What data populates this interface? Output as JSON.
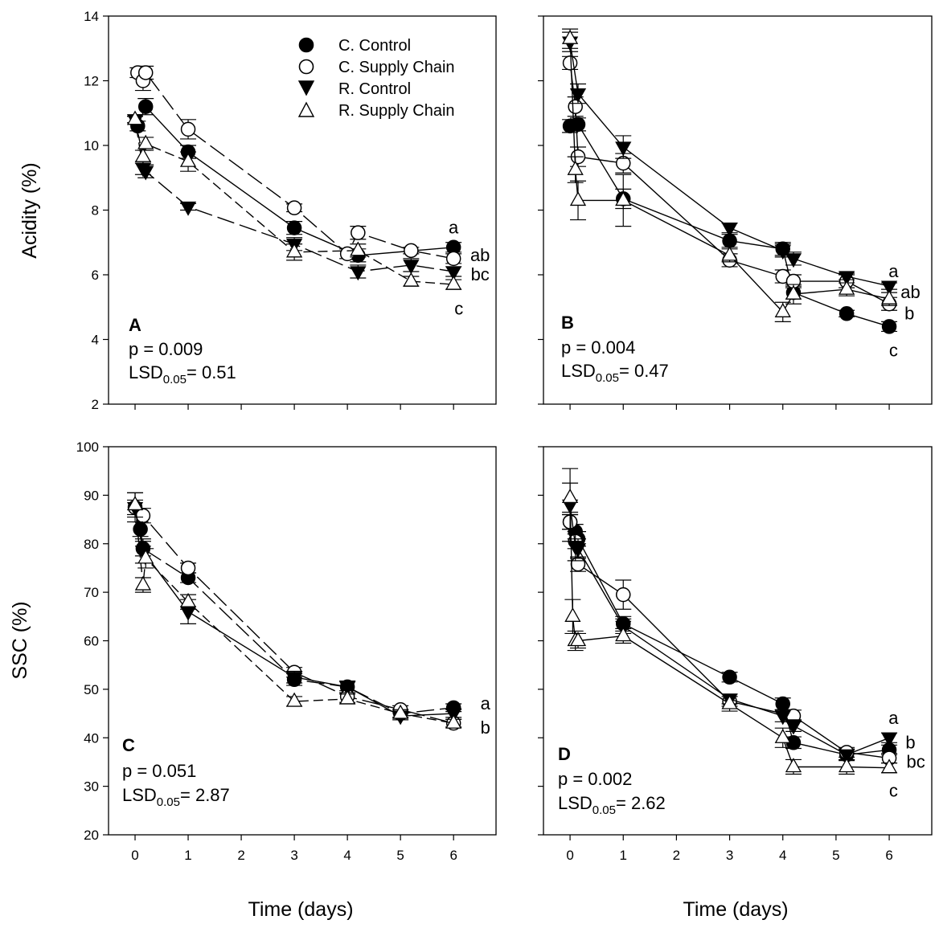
{
  "figure": {
    "x_axis_title": "Time (days)",
    "y_axis_title_top": "Acidity (%)",
    "y_axis_title_bottom": "SSC (%)"
  },
  "legend": [
    {
      "label": "C. Control",
      "marker": "circle-filled"
    },
    {
      "label": "C. Supply Chain",
      "marker": "circle-open"
    },
    {
      "label": "R. Control",
      "marker": "triangle-down-filled"
    },
    {
      "label": "R. Supply Chain",
      "marker": "triangle-up-open"
    }
  ],
  "chart_data": [
    {
      "type": "line",
      "panel": "A",
      "ylabel": "Acidity (%)",
      "xlabel": "",
      "xlim": [
        -0.5,
        6.8
      ],
      "ylim": [
        2,
        14
      ],
      "xticks": [
        0,
        1,
        2,
        3,
        4,
        5,
        6
      ],
      "yticks": [
        2,
        4,
        6,
        8,
        10,
        12,
        14
      ],
      "show_xtick_labels": false,
      "show_ytick_labels": true,
      "stats": {
        "p": "p = 0.009",
        "lsd_value": "= 0.51"
      },
      "series": [
        {
          "name": "C. Control",
          "dash": "solid",
          "x": [
            0.05,
            0.2,
            1,
            3,
            4.2,
            6
          ],
          "y": [
            10.6,
            11.2,
            9.8,
            7.45,
            6.6,
            6.85
          ],
          "err": [
            0.15,
            0.25,
            0.2,
            0.2,
            0.2,
            0.15
          ]
        },
        {
          "name": "C. Supply Chain",
          "dash": "long",
          "x": [
            0.05,
            0.15,
            0.2,
            1,
            3,
            4,
            4.2,
            5.2,
            6
          ],
          "y": [
            12.25,
            12.0,
            12.25,
            10.5,
            8.07,
            6.65,
            7.3,
            6.75,
            6.5
          ],
          "err": [
            0.15,
            0.3,
            0.2,
            0.3,
            0.12,
            0.15,
            0.2,
            0.1,
            0.15
          ]
        },
        {
          "name": "R. Control",
          "dash": "long",
          "x": [
            0,
            0.15,
            0.2,
            1,
            3,
            4.2,
            5.2,
            6
          ],
          "y": [
            10.8,
            9.3,
            9.2,
            8.1,
            6.95,
            6.1,
            6.3,
            6.1
          ],
          "err": [
            0.1,
            0.2,
            0.2,
            0.1,
            0.2,
            0.2,
            0.2,
            0.15
          ]
        },
        {
          "name": "R. Supply Chain",
          "dash": "medium",
          "x": [
            0,
            0.15,
            0.2,
            1,
            3,
            4.2,
            5.2,
            6
          ],
          "y": [
            10.8,
            9.65,
            10.05,
            9.5,
            6.7,
            6.75,
            5.8,
            5.7
          ],
          "err": [
            0.1,
            0.2,
            0.2,
            0.3,
            0.25,
            0.2,
            0.15,
            0.15
          ]
        }
      ],
      "letters": [
        {
          "text": "a",
          "x": 6,
          "y": 7.45
        },
        {
          "text": "ab",
          "x": 6.5,
          "y": 6.6
        },
        {
          "text": "bc",
          "x": 6.5,
          "y": 6.0
        },
        {
          "text": "c",
          "x": 6.1,
          "y": 4.95
        }
      ]
    },
    {
      "type": "line",
      "panel": "B",
      "ylabel": "",
      "xlabel": "",
      "xlim": [
        -0.5,
        6.8
      ],
      "ylim": [
        2,
        14
      ],
      "xticks": [
        0,
        1,
        2,
        3,
        4,
        5,
        6
      ],
      "yticks": [
        2,
        4,
        6,
        8,
        10,
        12,
        14
      ],
      "show_xtick_labels": false,
      "show_ytick_labels": false,
      "stats": {
        "p": "p = 0.004",
        "lsd_value": "= 0.47"
      },
      "series": [
        {
          "name": "C. Control",
          "dash": "solid",
          "x": [
            0,
            0.15,
            1,
            3,
            4,
            4.2,
            5.2,
            6
          ],
          "y": [
            10.6,
            10.65,
            8.35,
            7.05,
            6.8,
            5.45,
            4.8,
            4.4
          ],
          "err": [
            0.2,
            0.2,
            0.3,
            0.2,
            0.2,
            0.2,
            0.1,
            0.15
          ]
        },
        {
          "name": "C. Supply Chain",
          "dash": "solid",
          "x": [
            0,
            0.1,
            0.15,
            1,
            3,
            4,
            4.2,
            5.2,
            6
          ],
          "y": [
            12.55,
            11.2,
            9.65,
            9.45,
            6.45,
            5.95,
            5.8,
            5.8,
            5.1
          ],
          "err": [
            0.2,
            0.3,
            0.3,
            0.3,
            0.2,
            0.2,
            0.2,
            0.2,
            0.2
          ]
        },
        {
          "name": "R. Control",
          "dash": "solid",
          "x": [
            0,
            0.15,
            1,
            3,
            4,
            4.2,
            5.2,
            6
          ],
          "y": [
            13.2,
            11.6,
            9.95,
            7.45,
            6.75,
            6.5,
            5.95,
            5.65
          ],
          "err": [
            0.3,
            0.3,
            0.35,
            0.15,
            0.2,
            0.2,
            0.1,
            0.1
          ]
        },
        {
          "name": "R. Supply Chain",
          "dash": "solid",
          "x": [
            0,
            0.1,
            0.15,
            1,
            3,
            4,
            4.2,
            5.2,
            6
          ],
          "y": [
            13.3,
            9.25,
            8.3,
            8.3,
            6.6,
            4.85,
            5.4,
            5.55,
            5.25
          ],
          "err": [
            0.3,
            0.4,
            0.6,
            0.8,
            0.2,
            0.3,
            0.3,
            0.2,
            0.2
          ]
        }
      ],
      "letters": [
        {
          "text": "a",
          "x": 6.08,
          "y": 6.1
        },
        {
          "text": "ab",
          "x": 6.4,
          "y": 5.45
        },
        {
          "text": "b",
          "x": 6.38,
          "y": 4.8
        },
        {
          "text": "c",
          "x": 6.08,
          "y": 3.65
        }
      ]
    },
    {
      "type": "line",
      "panel": "C",
      "ylabel": "SSC (%)",
      "xlabel": "Time (days)",
      "xlim": [
        -0.5,
        6.8
      ],
      "ylim": [
        20,
        100
      ],
      "xticks": [
        0,
        1,
        2,
        3,
        4,
        5,
        6
      ],
      "yticks": [
        20,
        30,
        40,
        50,
        60,
        70,
        80,
        90,
        100
      ],
      "show_xtick_labels": true,
      "show_ytick_labels": true,
      "stats": {
        "p": "p = 0.051",
        "lsd_value": "= 2.87"
      },
      "series": [
        {
          "name": "C. Control",
          "dash": "long",
          "x": [
            0.1,
            0.15,
            1,
            3,
            4,
            5,
            6
          ],
          "y": [
            83.0,
            79.0,
            73.0,
            52.0,
            50.5,
            45.0,
            46.2
          ],
          "err": [
            1.5,
            1.5,
            1.0,
            1.2,
            1.2,
            0.8,
            0.8
          ]
        },
        {
          "name": "C. Supply Chain",
          "dash": "long",
          "x": [
            0,
            0.15,
            1,
            3,
            4,
            5,
            6
          ],
          "y": [
            87.5,
            85.8,
            75.0,
            53.5,
            48.5,
            45.8,
            43.0
          ],
          "err": [
            1.5,
            1.5,
            1.0,
            1.0,
            1.2,
            0.8,
            0.8
          ]
        },
        {
          "name": "R. Control",
          "dash": "solid",
          "x": [
            0,
            0.15,
            1,
            3,
            4,
            5,
            6
          ],
          "y": [
            87.5,
            78.5,
            66.0,
            52.5,
            50.5,
            44.5,
            45.0
          ],
          "err": [
            3.0,
            2.5,
            2.5,
            1.2,
            1.2,
            0.8,
            0.8
          ]
        },
        {
          "name": "R. Supply Chain",
          "dash": "medium",
          "x": [
            0,
            0.15,
            0.2,
            1,
            3,
            4,
            5,
            6
          ],
          "y": [
            88.0,
            71.5,
            77.0,
            68.0,
            47.5,
            48.0,
            45.0,
            43.0
          ],
          "err": [
            2.5,
            1.5,
            2.0,
            1.5,
            1.0,
            1.0,
            0.8,
            0.8
          ]
        }
      ],
      "letters": [
        {
          "text": "a",
          "x": 6.6,
          "y": 47.0
        },
        {
          "text": "b",
          "x": 6.6,
          "y": 42.0
        }
      ]
    },
    {
      "type": "line",
      "panel": "D",
      "ylabel": "",
      "xlabel": "Time (days)",
      "xlim": [
        -0.5,
        6.8
      ],
      "ylim": [
        20,
        100
      ],
      "xticks": [
        0,
        1,
        2,
        3,
        4,
        5,
        6
      ],
      "yticks": [
        20,
        30,
        40,
        50,
        60,
        70,
        80,
        90,
        100
      ],
      "show_xtick_labels": true,
      "show_ytick_labels": false,
      "stats": {
        "p": "p = 0.002",
        "lsd_value": "= 2.62"
      },
      "series": [
        {
          "name": "C. Control",
          "dash": "solid",
          "x": [
            0,
            0.1,
            0.15,
            1,
            3,
            4,
            4.2,
            5.2,
            6
          ],
          "y": [
            84.5,
            82.5,
            81.0,
            63.5,
            52.5,
            47.0,
            39.0,
            36.5,
            37.5
          ],
          "err": [
            1.5,
            1.5,
            1.5,
            1.5,
            1.0,
            1.2,
            1.2,
            1.2,
            1.0
          ]
        },
        {
          "name": "C. Supply Chain",
          "dash": "solid",
          "x": [
            0,
            0.1,
            0.15,
            1,
            3,
            4.2,
            5.2,
            6
          ],
          "y": [
            84.5,
            80.5,
            75.8,
            69.5,
            47.5,
            44.5,
            37.0,
            35.8
          ],
          "err": [
            1.5,
            1.5,
            1.5,
            3.0,
            1.0,
            1.2,
            1.0,
            1.0
          ]
        },
        {
          "name": "R. Control",
          "dash": "solid",
          "x": [
            0,
            0.1,
            0.15,
            1,
            3,
            4,
            4.2,
            5.2,
            6
          ],
          "y": [
            88.0,
            79.5,
            79.0,
            63.0,
            48.0,
            44.5,
            42.5,
            36.5,
            40.0
          ],
          "err": [
            7.5,
            3.0,
            2.0,
            1.5,
            1.0,
            1.2,
            1.2,
            1.0,
            1.0
          ]
        },
        {
          "name": "R. Supply Chain",
          "dash": "solid",
          "x": [
            0,
            0.05,
            0.1,
            0.15,
            1,
            3,
            4,
            4.2,
            5.2,
            6
          ],
          "y": [
            89.5,
            65.0,
            60.0,
            60.0,
            61.0,
            47.0,
            40.0,
            34.0,
            34.0,
            33.8
          ],
          "err": [
            3.0,
            3.5,
            2.0,
            1.5,
            1.5,
            1.5,
            2.0,
            1.5,
            1.5,
            1.0
          ]
        }
      ],
      "letters": [
        {
          "text": "a",
          "x": 6.08,
          "y": 44.0
        },
        {
          "text": "b",
          "x": 6.4,
          "y": 39.0
        },
        {
          "text": "bc",
          "x": 6.5,
          "y": 35.0
        },
        {
          "text": "c",
          "x": 6.08,
          "y": 29.0
        }
      ]
    }
  ]
}
